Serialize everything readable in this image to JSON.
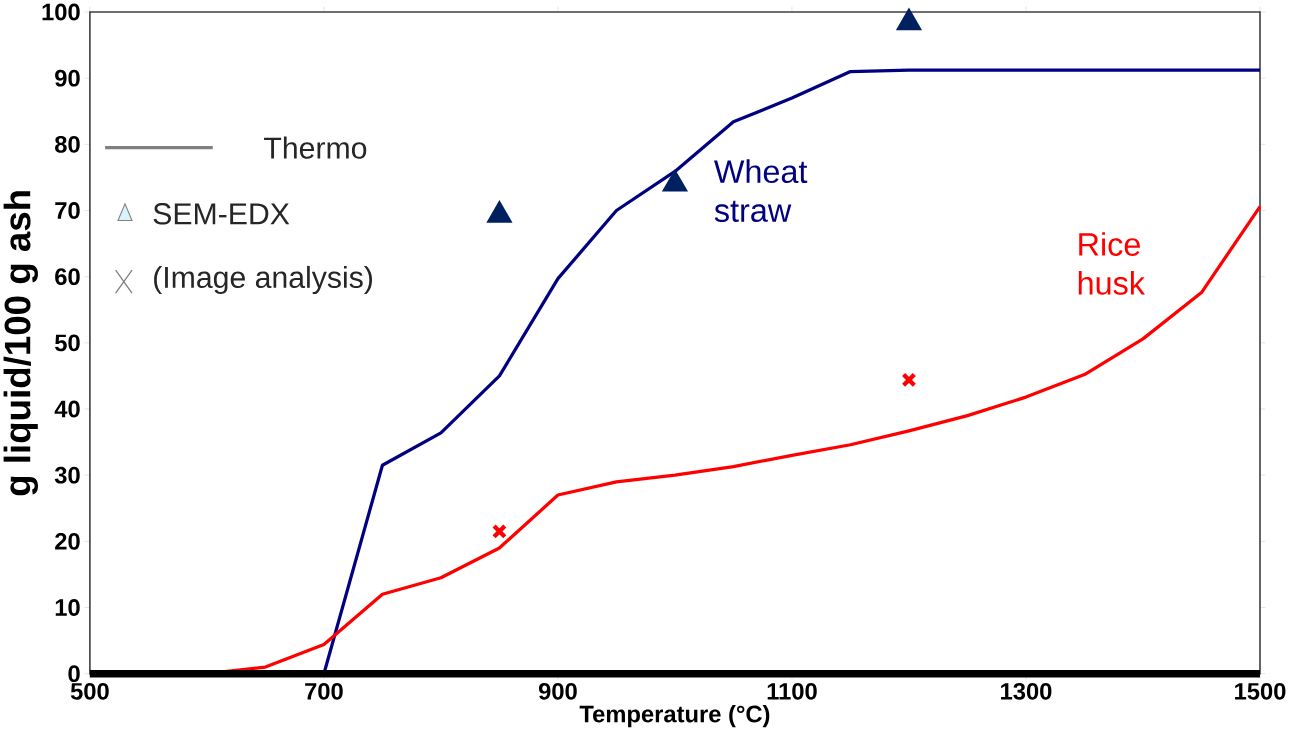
{
  "chart_data": {
    "type": "line",
    "xlabel": "Temperature (°C)",
    "ylabel": "g liquid/100 g ash",
    "xlim": [
      500,
      1500
    ],
    "xticks": [
      500,
      700,
      900,
      1100,
      1300,
      1500
    ],
    "ylim": [
      0,
      100
    ],
    "yticks": [
      0,
      10,
      20,
      30,
      40,
      50,
      60,
      70,
      80,
      90,
      100
    ],
    "grid": false,
    "series": [
      {
        "name": "Wheat straw",
        "color": "#000080",
        "x": [
          700,
          750,
          800,
          850,
          900,
          950,
          1000,
          1050,
          1100,
          1150,
          1200,
          1500
        ],
        "values": [
          0,
          31.5,
          36.4,
          45,
          59.7,
          70,
          75.9,
          83.4,
          87,
          91,
          91.2,
          91.2
        ]
      },
      {
        "name": "Rice husk",
        "color": "#ff0000",
        "x": [
          500,
          600,
          650,
          700,
          750,
          800,
          850,
          900,
          950,
          1000,
          1050,
          1100,
          1150,
          1200,
          1250,
          1300,
          1350,
          1400,
          1450,
          1500
        ],
        "values": [
          0,
          0,
          1,
          4.4,
          12,
          14.5,
          19,
          27,
          29,
          30,
          31.3,
          33,
          34.6,
          36.7,
          39,
          41.8,
          45.2,
          50.6,
          57.6,
          70.6
        ]
      },
      {
        "type": "scatter",
        "marker": "triangle",
        "color": "#002060",
        "x": [
          850,
          1000,
          1200
        ],
        "values": [
          69.3,
          74,
          98.4
        ]
      },
      {
        "type": "scatter",
        "marker": "cross",
        "color": "#ff0000",
        "x": [
          850,
          1200
        ],
        "values": [
          21.5,
          44.4
        ]
      }
    ],
    "annotations": [
      "Thermo",
      "SEM-EDX",
      "(Image analysis)"
    ]
  }
}
